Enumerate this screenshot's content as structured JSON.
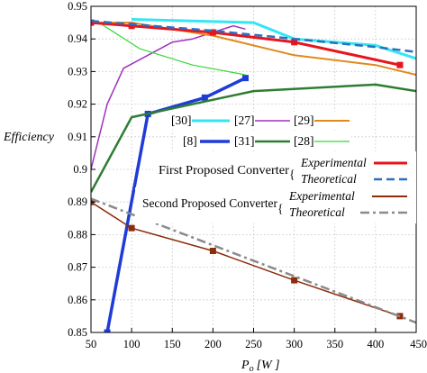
{
  "chart_data": {
    "type": "line",
    "title": "",
    "xlabel_main": "P",
    "xlabel_sub": "o",
    "xlabel_unit": "[W ]",
    "ylabel": "Efficiency",
    "xlim": [
      50,
      450
    ],
    "ylim": [
      0.85,
      0.95
    ],
    "x_ticks": [
      50,
      100,
      150,
      200,
      250,
      300,
      350,
      400,
      450
    ],
    "x_tick_labels": [
      "50",
      "100",
      "150",
      "200",
      "250",
      "300",
      "350",
      "400",
      "450"
    ],
    "y_ticks": [
      0.85,
      0.86,
      0.87,
      0.88,
      0.89,
      0.9,
      0.91,
      0.92,
      0.93,
      0.94,
      0.95
    ],
    "y_tick_labels": [
      "0.85",
      "0.86",
      "0.87",
      "0.88",
      "0.89",
      "0.9",
      "0.91",
      "0.92",
      "0.93",
      "0.94",
      "0.95"
    ],
    "grid": true,
    "series": [
      {
        "name": "[30]",
        "color": "#33e6f2",
        "width": 3,
        "marker": "none",
        "x": [
          100,
          250,
          300,
          400,
          450
        ],
        "y": [
          0.946,
          0.945,
          0.94,
          0.938,
          0.934
        ]
      },
      {
        "name": "[27]",
        "color": "#a030c0",
        "width": 1.5,
        "marker": "none",
        "x": [
          50,
          70,
          90,
          150,
          175,
          225,
          240
        ],
        "y": [
          0.9,
          0.92,
          0.931,
          0.939,
          0.94,
          0.944,
          0.943
        ]
      },
      {
        "name": "[29]",
        "color": "#e08a1e",
        "width": 2,
        "marker": "none",
        "x": [
          50,
          100,
          200,
          300,
          400,
          450
        ],
        "y": [
          0.945,
          0.945,
          0.941,
          0.935,
          0.932,
          0.929
        ]
      },
      {
        "name": "[8]",
        "color": "#1e3cd6",
        "width": 3.5,
        "marker": "square",
        "x": [
          70,
          120,
          190,
          240
        ],
        "y": [
          0.85,
          0.917,
          0.922,
          0.928
        ]
      },
      {
        "name": "[31]",
        "color": "#2e7d32",
        "width": 2.5,
        "marker": "none",
        "x": [
          50,
          100,
          250,
          400,
          450
        ],
        "y": [
          0.893,
          0.916,
          0.924,
          0.926,
          0.924
        ]
      },
      {
        "name": "[28]",
        "color": "#35d835",
        "width": 1.2,
        "marker": "none",
        "x": [
          60,
          110,
          175,
          240
        ],
        "y": [
          0.945,
          0.937,
          0.932,
          0.929
        ]
      },
      {
        "name": "First Proposed Converter Experimental",
        "color": "#e8141c",
        "width": 3,
        "marker": "square",
        "x": [
          50,
          100,
          200,
          300,
          430
        ],
        "y": [
          0.945,
          0.944,
          0.942,
          0.939,
          0.932
        ]
      },
      {
        "name": "First Proposed Converter Theoretical",
        "color": "#2a70c0",
        "width": 2.5,
        "dash": "9,5",
        "marker": "none",
        "x": [
          50,
          100,
          200,
          300,
          400,
          450
        ],
        "y": [
          0.9455,
          0.9445,
          0.9425,
          0.94,
          0.9375,
          0.936
        ]
      },
      {
        "name": "Second Proposed Converter Experimental",
        "color": "#8b2c0a",
        "width": 1.5,
        "marker": "square",
        "x": [
          50,
          100,
          200,
          300,
          430
        ],
        "y": [
          0.89,
          0.882,
          0.875,
          0.866,
          0.855
        ]
      },
      {
        "name": "Second Proposed Converter Theoretical",
        "color": "#8a8a8a",
        "width": 2.5,
        "dash": "10,4,3,4",
        "marker": "none",
        "x": [
          50,
          150,
          250,
          350,
          450
        ],
        "y": [
          0.891,
          0.8815,
          0.872,
          0.8625,
          0.853
        ]
      }
    ],
    "legend": {
      "placement": "center-right",
      "row1": [
        {
          "label": "[30]",
          "series": 0
        },
        {
          "label": "[27]",
          "series": 1
        },
        {
          "label": "[29]",
          "series": 2
        }
      ],
      "row2": [
        {
          "label": "[8]",
          "series": 3
        },
        {
          "label": "[31]",
          "series": 4
        },
        {
          "label": "[28]",
          "series": 5
        }
      ],
      "first_group_label": "First Proposed Converter",
      "second_group_label": "Second Proposed Converter",
      "experimental_label": "Experimental",
      "theoretical_label": "Theoretical"
    }
  }
}
